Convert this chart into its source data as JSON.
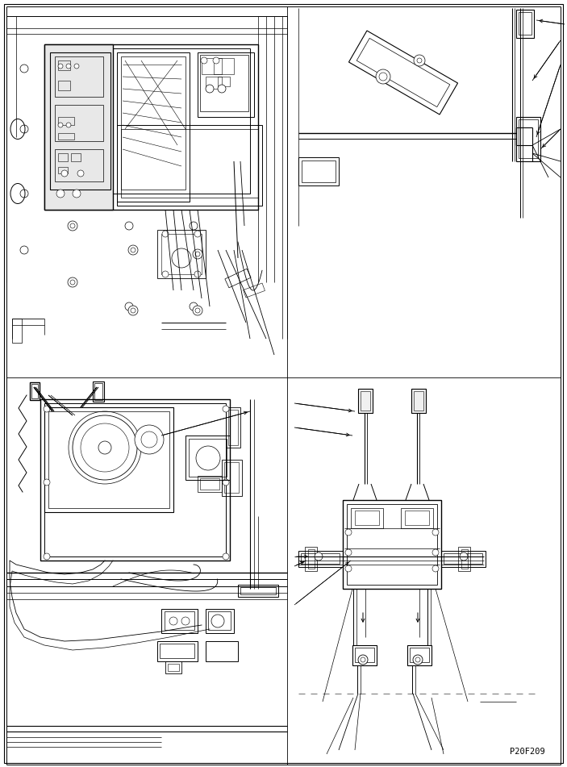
{
  "background_color": "#ffffff",
  "line_color": "#000000",
  "page_code": "P20F209",
  "figure_width": 7.03,
  "figure_height": 9.51,
  "dpi": 100
}
